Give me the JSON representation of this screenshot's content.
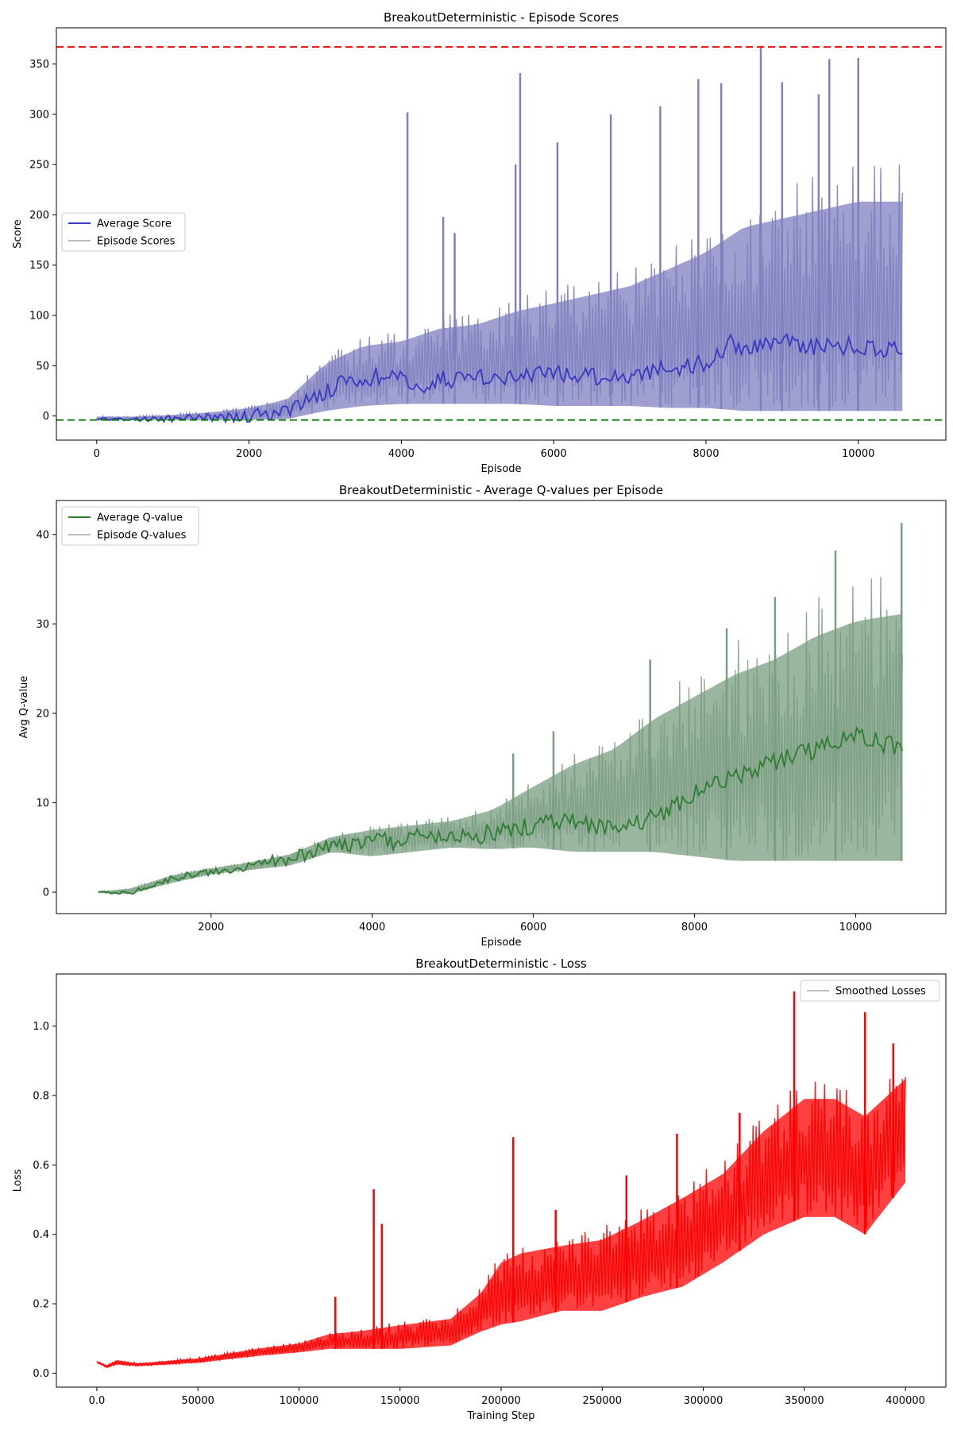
{
  "chart_data": [
    {
      "type": "line",
      "title": "BreakoutDeterministic - Episode Scores",
      "xlabel": "Episode",
      "ylabel": "Score",
      "xlim": [
        -530,
        11150
      ],
      "ylim": [
        -24,
        386
      ],
      "xticks": [
        0,
        2000,
        4000,
        6000,
        8000,
        10000
      ],
      "yticks": [
        0,
        50,
        100,
        150,
        200,
        250,
        300,
        350
      ],
      "legend": {
        "placement": "center-left",
        "entries": [
          "Average Score",
          "Episode Scores"
        ]
      },
      "reference_lines": [
        {
          "y": 367,
          "color": "#ff0000",
          "style": "dashed"
        },
        {
          "y": -4,
          "color": "#008000",
          "style": "dashed"
        }
      ],
      "series": [
        {
          "name": "Episode Scores",
          "color": "#8080c0",
          "band": {
            "x": [
              0,
              500,
              1000,
              1500,
              2000,
              2500,
              3000,
              3500,
              4000,
              4500,
              5000,
              5500,
              6000,
              6500,
              7000,
              7500,
              8000,
              8500,
              9000,
              9500,
              10000,
              10580
            ],
            "low": [
              -4,
              -4,
              -4,
              -4,
              -4,
              -3,
              5,
              10,
              12,
              12,
              12,
              12,
              10,
              10,
              10,
              8,
              8,
              5,
              5,
              5,
              5,
              5
            ],
            "high": [
              0,
              0,
              2,
              5,
              10,
              20,
              60,
              80,
              85,
              100,
              105,
              120,
              130,
              140,
              150,
              170,
              190,
              220,
              230,
              240,
              250,
              250
            ]
          },
          "spikes": [
            {
              "x": 4080,
              "y": 302
            },
            {
              "x": 4550,
              "y": 198
            },
            {
              "x": 4700,
              "y": 182
            },
            {
              "x": 5500,
              "y": 250
            },
            {
              "x": 5560,
              "y": 341
            },
            {
              "x": 6050,
              "y": 272
            },
            {
              "x": 6750,
              "y": 300
            },
            {
              "x": 7400,
              "y": 308
            },
            {
              "x": 7900,
              "y": 335
            },
            {
              "x": 8200,
              "y": 331
            },
            {
              "x": 8720,
              "y": 367
            },
            {
              "x": 9000,
              "y": 332
            },
            {
              "x": 9480,
              "y": 320
            },
            {
              "x": 9620,
              "y": 355
            },
            {
              "x": 10000,
              "y": 356
            }
          ]
        },
        {
          "name": "Average Score",
          "color": "#3838c0",
          "x": [
            0,
            500,
            1000,
            1500,
            2000,
            2500,
            3000,
            3300,
            3700,
            4000,
            4200,
            4500,
            5000,
            5500,
            6000,
            6500,
            7000,
            7500,
            8000,
            8300,
            8500,
            9000,
            9500,
            10000,
            10580
          ],
          "y": [
            -3,
            -3,
            -3,
            -2,
            0,
            5,
            25,
            35,
            40,
            35,
            30,
            35,
            40,
            38,
            42,
            40,
            40,
            48,
            52,
            72,
            68,
            75,
            68,
            70,
            65
          ]
        }
      ]
    },
    {
      "type": "line",
      "title": "BreakoutDeterministic - Average Q-values per Episode",
      "xlabel": "Episode",
      "ylabel": "Avg Q-value",
      "xlim": [
        80,
        11120
      ],
      "ylim": [
        -2.4,
        43.8
      ],
      "xticks": [
        2000,
        4000,
        6000,
        8000,
        10000
      ],
      "yticks": [
        0,
        10,
        20,
        30,
        40
      ],
      "legend": {
        "placement": "top-left",
        "entries": [
          "Average Q-value",
          "Episode Q-values"
        ]
      },
      "series": [
        {
          "name": "Episode Q-values",
          "color": "#7a9e80",
          "band": {
            "x": [
              600,
              1000,
              1500,
              2000,
              2500,
              3000,
              3500,
              4000,
              4500,
              5000,
              5500,
              6000,
              6500,
              7000,
              7500,
              8000,
              8500,
              9000,
              9500,
              10000,
              10580
            ],
            "low": [
              -0.1,
              -0.2,
              1.0,
              2.0,
              2.5,
              3.0,
              4.5,
              4.0,
              4.5,
              5.0,
              4.8,
              5.0,
              4.5,
              4.5,
              4.5,
              4.0,
              3.5,
              3.5,
              3.5,
              3.5,
              3.5
            ],
            "high": [
              0.1,
              0.5,
              2.0,
              2.8,
              3.5,
              4.5,
              6.5,
              7.5,
              8.0,
              8.5,
              10.0,
              13.0,
              16.0,
              18.0,
              22.0,
              25.0,
              28.0,
              30.0,
              33.0,
              35.0,
              36.0
            ]
          },
          "spikes": [
            {
              "x": 5750,
              "y": 15.5
            },
            {
              "x": 6250,
              "y": 18.0
            },
            {
              "x": 7450,
              "y": 26.0
            },
            {
              "x": 8400,
              "y": 29.5
            },
            {
              "x": 9000,
              "y": 33.0
            },
            {
              "x": 9750,
              "y": 38.2
            },
            {
              "x": 10570,
              "y": 41.3
            }
          ]
        },
        {
          "name": "Average Q-value",
          "color": "#2e7d32",
          "x": [
            600,
            1000,
            1500,
            2000,
            2500,
            3000,
            3500,
            4000,
            4500,
            5000,
            5500,
            6000,
            6500,
            7000,
            7500,
            8000,
            8500,
            9000,
            9500,
            10000,
            10580
          ],
          "y": [
            0,
            -0.1,
            1.5,
            2.2,
            3.0,
            3.8,
            5.3,
            5.5,
            6.0,
            6.3,
            6.5,
            7.5,
            8.0,
            7.0,
            8.5,
            11.0,
            13.0,
            14.5,
            16.0,
            17.5,
            16.0
          ]
        }
      ]
    },
    {
      "type": "line",
      "title": "BreakoutDeterministic - Loss",
      "xlabel": "Training Step",
      "ylabel": "Loss",
      "xlim": [
        -20000,
        420000
      ],
      "ylim": [
        -0.04,
        1.15
      ],
      "xticks": [
        0,
        50000,
        100000,
        150000,
        200000,
        250000,
        300000,
        350000,
        400000
      ],
      "yticks": [
        0.0,
        0.2,
        0.4,
        0.6,
        0.8,
        1.0
      ],
      "legend": {
        "placement": "top-right",
        "entries": [
          "Smoothed Losses"
        ]
      },
      "series": [
        {
          "name": "Smoothed Losses",
          "color": "#ff0000",
          "band": {
            "x": [
              0,
              5000,
              10000,
              20000,
              50000,
              80000,
              100000,
              115000,
              130000,
              150000,
              175000,
              190000,
              200000,
              210000,
              230000,
              250000,
              270000,
              290000,
              310000,
              330000,
              350000,
              365000,
              380000,
              400000
            ],
            "low": [
              0.03,
              0.015,
              0.025,
              0.02,
              0.03,
              0.05,
              0.06,
              0.07,
              0.07,
              0.07,
              0.08,
              0.12,
              0.14,
              0.15,
              0.18,
              0.18,
              0.22,
              0.25,
              0.32,
              0.4,
              0.45,
              0.45,
              0.4,
              0.55
            ],
            "high": [
              0.035,
              0.025,
              0.04,
              0.03,
              0.045,
              0.075,
              0.09,
              0.12,
              0.13,
              0.15,
              0.17,
              0.25,
              0.35,
              0.38,
              0.4,
              0.42,
              0.48,
              0.55,
              0.62,
              0.75,
              0.85,
              0.85,
              0.8,
              0.9
            ]
          },
          "spikes": [
            {
              "x": 118000,
              "y": 0.22
            },
            {
              "x": 137000,
              "y": 0.53
            },
            {
              "x": 141000,
              "y": 0.43
            },
            {
              "x": 206000,
              "y": 0.68
            },
            {
              "x": 227000,
              "y": 0.47
            },
            {
              "x": 262000,
              "y": 0.57
            },
            {
              "x": 287000,
              "y": 0.69
            },
            {
              "x": 318000,
              "y": 0.75
            },
            {
              "x": 345000,
              "y": 1.1
            },
            {
              "x": 380000,
              "y": 1.04
            },
            {
              "x": 394000,
              "y": 0.95
            }
          ]
        }
      ]
    }
  ]
}
